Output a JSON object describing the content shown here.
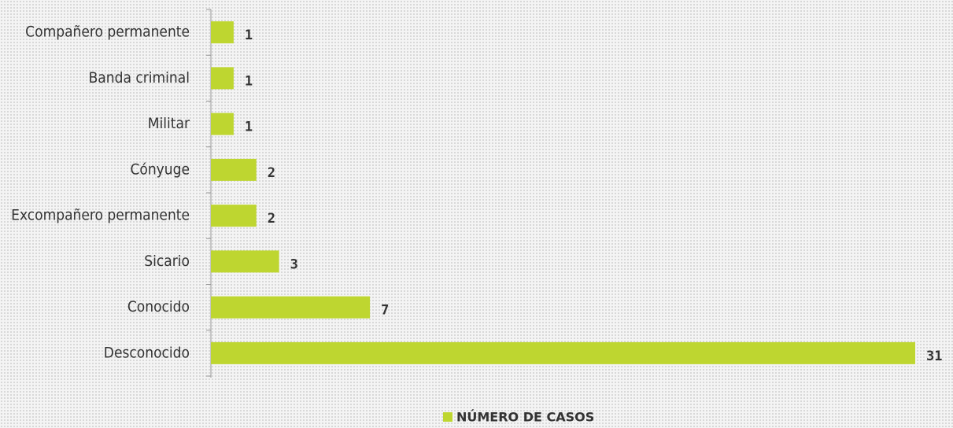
{
  "chart_data": {
    "type": "bar",
    "orientation": "horizontal",
    "categories": [
      "Compañero permanente",
      "Banda criminal",
      "Militar",
      "Cónyuge",
      "Excompañero permanente",
      "Sicario",
      "Conocido",
      "Desconocido"
    ],
    "series": [
      {
        "name": "NÚMERO DE CASOS",
        "color": "#bed630",
        "values": [
          1,
          1,
          1,
          2,
          2,
          3,
          7,
          31
        ]
      }
    ],
    "xlim": [
      0,
      31
    ],
    "legend": "bottom"
  }
}
